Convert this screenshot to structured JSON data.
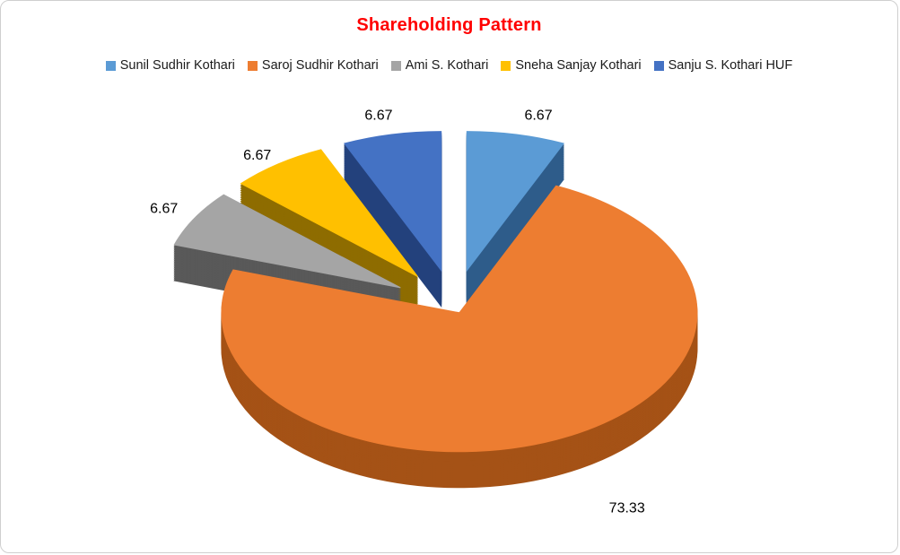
{
  "chart_data": {
    "type": "pie",
    "effect": "3d-exploded",
    "title": "Shareholding Pattern",
    "title_color": "#FF0000",
    "legend_position": "top",
    "exploded": true,
    "labels": [
      "Sunil Sudhir Kothari",
      "Saroj Sudhir Kothari",
      "Ami S. Kothari",
      "Sneha Sanjay Kothari",
      "Sanju S. Kothari HUF"
    ],
    "values": [
      6.67,
      73.33,
      6.67,
      6.67,
      6.67
    ],
    "data_labels": [
      "6.67",
      "73.33",
      "6.67",
      "6.67",
      "6.67"
    ],
    "colors": [
      "#5B9BD5",
      "#ED7D31",
      "#A5A5A5",
      "#FFC000",
      "#4472C4"
    ],
    "side_colors": [
      "#2E5C8A",
      "#A55216",
      "#595959",
      "#8E6C00",
      "#23417C"
    ],
    "background": "#FFFFFF",
    "border_color": "#CFCFCF"
  }
}
